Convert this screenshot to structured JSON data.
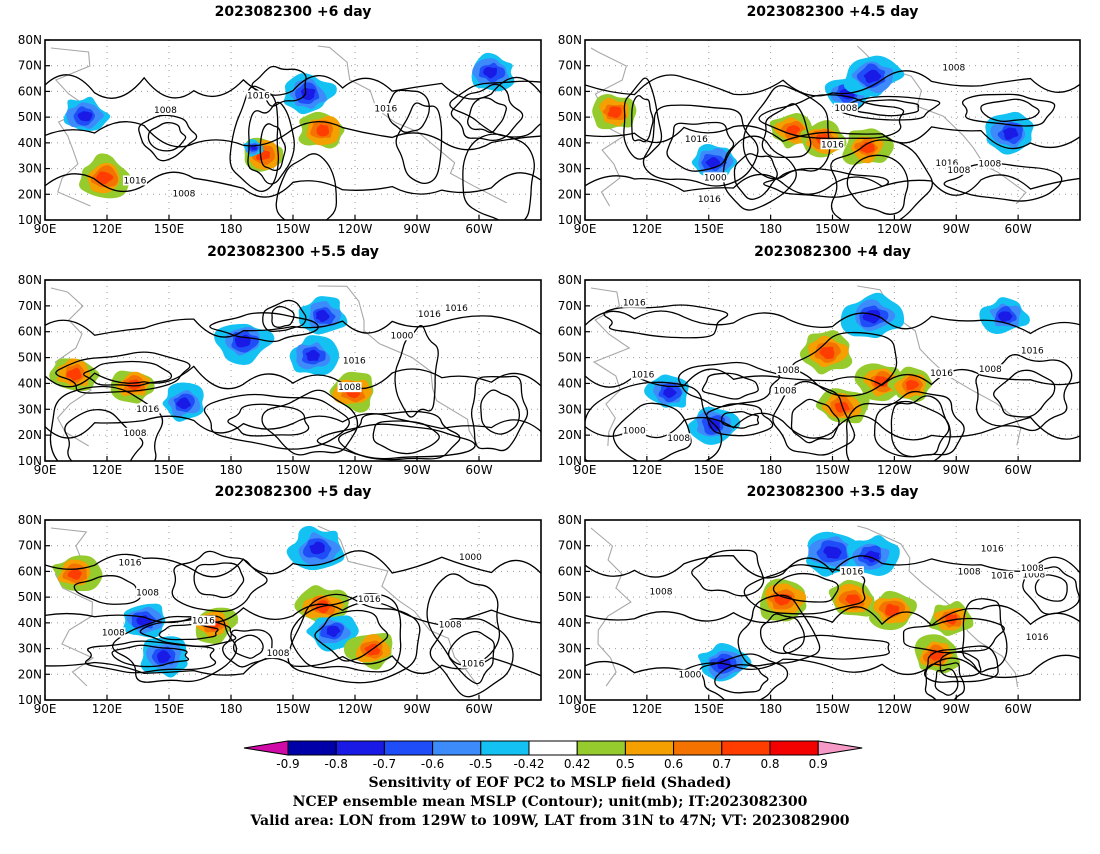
{
  "panels": [
    {
      "title": "2023082300 +6 day",
      "contour_labels": [
        "1016",
        "1016",
        "1008",
        "1016",
        "1008"
      ],
      "blobs": [
        [
          0.44,
          0.64,
          0.2,
          "pos"
        ],
        [
          0.56,
          0.5,
          0.2,
          "pos"
        ],
        [
          0.53,
          0.3,
          0.24,
          "neg"
        ],
        [
          0.9,
          0.18,
          0.2,
          "neg"
        ],
        [
          0.42,
          0.6,
          0.0,
          "neg"
        ],
        [
          0.12,
          0.76,
          0.24,
          "pos"
        ],
        [
          0.08,
          0.42,
          0.2,
          "neg"
        ]
      ]
    },
    {
      "title": "2023082300 +4.5 day",
      "contour_labels": [
        "1008",
        "1008",
        "1016",
        "1016",
        "1016",
        "1008",
        "1000",
        "1008",
        "1016"
      ],
      "blobs": [
        [
          0.53,
          0.3,
          0.2,
          "neg"
        ],
        [
          0.58,
          0.2,
          0.27,
          "neg"
        ],
        [
          0.42,
          0.5,
          0.18,
          "pos"
        ],
        [
          0.48,
          0.55,
          0.2,
          "pos"
        ],
        [
          0.57,
          0.6,
          0.2,
          "pos"
        ],
        [
          0.86,
          0.52,
          0.22,
          "neg"
        ],
        [
          0.06,
          0.4,
          0.2,
          "pos"
        ],
        [
          0.26,
          0.68,
          0.2,
          "neg"
        ]
      ]
    },
    {
      "title": "2023082300 +5.5 day",
      "contour_labels": [
        "1008",
        "1016",
        "1016",
        "1016",
        "1000",
        "1016",
        "1008"
      ],
      "blobs": [
        [
          0.62,
          0.62,
          0.22,
          "pos"
        ],
        [
          0.56,
          0.2,
          0.2,
          "neg"
        ],
        [
          0.54,
          0.42,
          0.2,
          "neg"
        ],
        [
          0.28,
          0.68,
          0.18,
          "neg"
        ],
        [
          0.18,
          0.58,
          0.18,
          "pos"
        ],
        [
          0.06,
          0.52,
          0.22,
          "pos"
        ],
        [
          0.4,
          0.34,
          0.25,
          "neg"
        ]
      ]
    },
    {
      "title": "2023082300 +4 day",
      "contour_labels": [
        "1008",
        "1016",
        "1008",
        "1008",
        "1000",
        "1016",
        "1016",
        "1008",
        "1016"
      ],
      "blobs": [
        [
          0.58,
          0.2,
          0.28,
          "neg"
        ],
        [
          0.49,
          0.4,
          0.24,
          "pos"
        ],
        [
          0.6,
          0.56,
          0.22,
          "pos"
        ],
        [
          0.52,
          0.7,
          0.22,
          "pos"
        ],
        [
          0.26,
          0.8,
          0.2,
          "neg"
        ],
        [
          0.17,
          0.62,
          0.18,
          "neg"
        ],
        [
          0.66,
          0.58,
          0.18,
          "pos"
        ],
        [
          0.85,
          0.2,
          0.18,
          "neg"
        ]
      ]
    },
    {
      "title": "2023082300 +5 day",
      "contour_labels": [
        "1008",
        "1008",
        "1016",
        "1016",
        "1016",
        "1008",
        "1000",
        "1016",
        "1008"
      ],
      "blobs": [
        [
          0.55,
          0.16,
          0.26,
          "neg"
        ],
        [
          0.56,
          0.48,
          0.22,
          "pos"
        ],
        [
          0.58,
          0.62,
          0.2,
          "neg"
        ],
        [
          0.66,
          0.72,
          0.2,
          "pos"
        ],
        [
          0.2,
          0.56,
          0.2,
          "neg"
        ],
        [
          0.34,
          0.58,
          0.18,
          "pos"
        ],
        [
          0.06,
          0.3,
          0.2,
          "pos"
        ],
        [
          0.24,
          0.76,
          0.22,
          "neg"
        ]
      ]
    },
    {
      "title": "2023082300 +3.5 day",
      "contour_labels": [
        "1016",
        "1016",
        "1008",
        "1008",
        "1016",
        "1000",
        "1008",
        "1008",
        "1016"
      ],
      "blobs": [
        [
          0.5,
          0.18,
          0.28,
          "neg"
        ],
        [
          0.4,
          0.44,
          0.26,
          "pos"
        ],
        [
          0.54,
          0.44,
          0.22,
          "pos"
        ],
        [
          0.62,
          0.5,
          0.2,
          "pos"
        ],
        [
          0.28,
          0.8,
          0.22,
          "neg"
        ],
        [
          0.71,
          0.75,
          0.2,
          "pos"
        ],
        [
          0.74,
          0.55,
          0.18,
          "pos"
        ],
        [
          0.58,
          0.2,
          0.22,
          "neg"
        ]
      ]
    }
  ],
  "axes": {
    "lat_labels": [
      "80N",
      "70N",
      "60N",
      "50N",
      "40N",
      "30N",
      "20N",
      "10N"
    ],
    "lon_labels": [
      "90E",
      "120E",
      "150E",
      "180",
      "150W",
      "120W",
      "90W",
      "60W"
    ]
  },
  "colorbar": {
    "labels": [
      "-0.9",
      "-0.8",
      "-0.7",
      "-0.6",
      "-0.5",
      "-0.42",
      "0.42",
      "0.5",
      "0.6",
      "0.7",
      "0.8",
      "0.9"
    ],
    "colors": [
      "#d00aa6",
      "#0000a8",
      "#1a1ae6",
      "#1f4df8",
      "#3d8bfb",
      "#13c2f3",
      "#ffffff",
      "#96cb2d",
      "#f3a000",
      "#f47200",
      "#ff3d00",
      "#f30000",
      "#f59ac6"
    ]
  },
  "footer": {
    "line1": "Sensitivity of EOF PC2 to MSLP field (Shaded)",
    "line2": "NCEP ensemble mean MSLP (Contour); unit(mb); IT:2023082300",
    "line3": "Valid area: LON from 129W to 109W, LAT from 31N to 47N; VT: 2023082900"
  }
}
